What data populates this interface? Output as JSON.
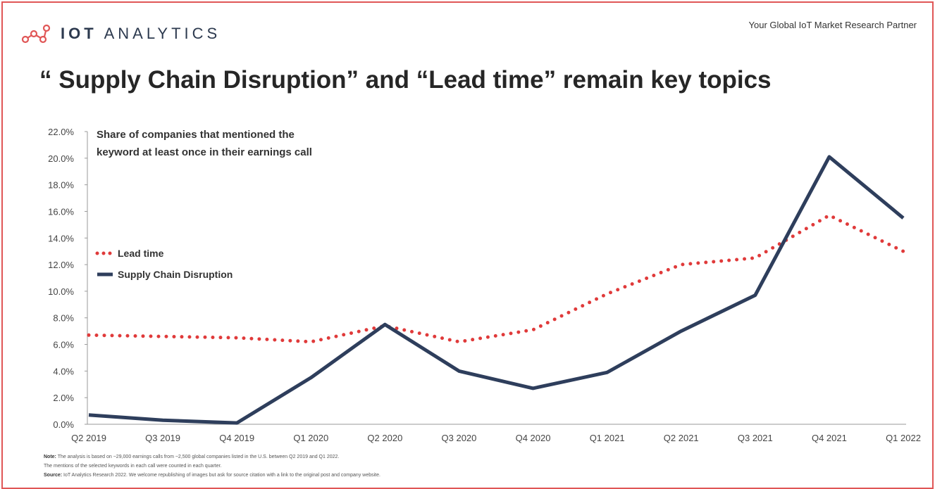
{
  "brand": {
    "name_bold": "IOT",
    "name_rest": "ANALYTICS",
    "logo": "network-nodes-logo"
  },
  "tagline": "Your Global IoT Market Research Partner",
  "title": "“ Supply Chain Disruption” and “Lead time” remain key topics",
  "footnotes": {
    "note_label": "Note:",
    "note_line1": "The analysis is based on ~29,000 earnings calls from ~2,500 global companies listed in the U.S. between Q2 2019 and Q1 2022.",
    "note_line2": "The mentions of the selected keywords in each call were counted in each quarter.",
    "source_label": "Source:",
    "source_text": "IoT Analytics Research 2022. We welcome republishing of images but ask for source citation with a link to the original post and company website."
  },
  "chart_data": {
    "type": "line",
    "annotation": [
      "Share of companies that mentioned the",
      "keyword at least once in their earnings call"
    ],
    "categories": [
      "Q2 2019",
      "Q3 2019",
      "Q4 2019",
      "Q1 2020",
      "Q2 2020",
      "Q3 2020",
      "Q4 2020",
      "Q1 2021",
      "Q2 2021",
      "Q3 2021",
      "Q4 2021",
      "Q1 2022"
    ],
    "series": [
      {
        "name": "Lead time",
        "style": "dotted",
        "color": "#e03a3a",
        "values": [
          6.7,
          6.6,
          6.5,
          6.2,
          7.4,
          6.2,
          7.1,
          9.8,
          12.0,
          12.5,
          15.7,
          13.0
        ]
      },
      {
        "name": "Supply Chain Disruption",
        "style": "solid",
        "color": "#2e3e5c",
        "values": [
          0.7,
          0.3,
          0.1,
          3.5,
          7.5,
          4.0,
          2.7,
          3.9,
          7.0,
          9.7,
          20.1,
          15.5
        ]
      }
    ],
    "yticks": [
      "0.0%",
      "2.0%",
      "4.0%",
      "6.0%",
      "8.0%",
      "10.0%",
      "12.0%",
      "14.0%",
      "16.0%",
      "18.0%",
      "20.0%",
      "22.0%"
    ],
    "ylim": [
      0,
      22
    ],
    "grid": false,
    "legend_position": "left-middle"
  }
}
